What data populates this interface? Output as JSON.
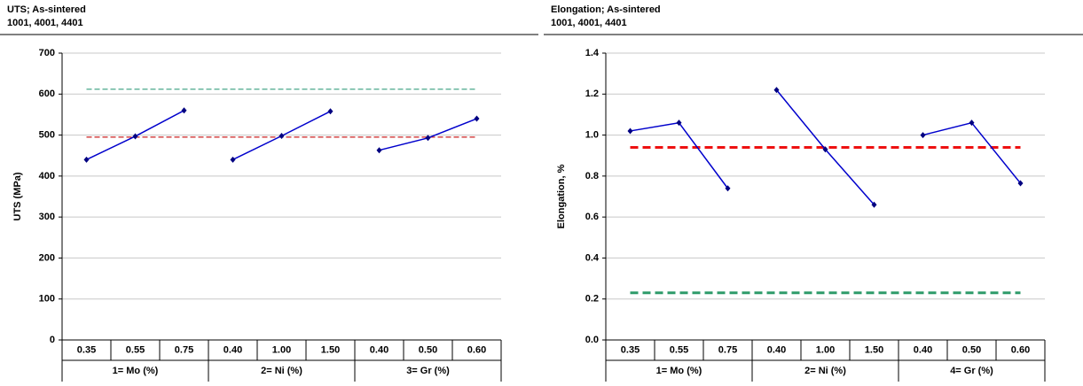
{
  "chart_data": [
    {
      "type": "line",
      "title": "UTS; As-sintered",
      "subtitle": "1001, 4001, 4401",
      "y_label": "UTS (MPa)",
      "categories": [
        "0.35",
        "0.55",
        "0.75",
        "0.40",
        "1.00",
        "1.50",
        "0.40",
        "0.50",
        "0.60"
      ],
      "groups": [
        "1= Mo (%)",
        "2= Ni (%)",
        "3= Gr (%)"
      ],
      "series": [
        {
          "color": "#0000cc",
          "values": [
            440,
            497,
            560,
            null,
            null,
            null,
            null,
            null,
            null
          ]
        },
        {
          "color": "#0000cc",
          "values": [
            null,
            null,
            null,
            440,
            498,
            558,
            null,
            null,
            null
          ]
        },
        {
          "color": "#0000cc",
          "values": [
            null,
            null,
            null,
            null,
            null,
            null,
            463,
            493,
            540
          ]
        }
      ],
      "reference_lines": [
        {
          "value": 612,
          "color": "#4aa88a"
        },
        {
          "value": 495,
          "color": "#cc2222"
        }
      ],
      "ylim": [
        0,
        700
      ],
      "yticks": [
        0,
        100,
        200,
        300,
        400,
        500,
        600,
        700
      ],
      "grid": true
    },
    {
      "type": "line",
      "title": "Elongation; As-sintered",
      "subtitle": "1001, 4001, 4401",
      "y_label": "Elongation, %",
      "categories": [
        "0.35",
        "0.55",
        "0.75",
        "0.40",
        "1.00",
        "1.50",
        "0.40",
        "0.50",
        "0.60"
      ],
      "groups": [
        "1= Mo (%)",
        "2= Ni (%)",
        "4= Gr (%)"
      ],
      "series": [
        {
          "color": "#0000cc",
          "values": [
            1.02,
            1.06,
            0.74,
            null,
            null,
            null,
            null,
            null,
            null
          ]
        },
        {
          "color": "#0000cc",
          "values": [
            null,
            null,
            null,
            1.22,
            0.93,
            0.66,
            null,
            null,
            null
          ]
        },
        {
          "color": "#0000cc",
          "values": [
            null,
            null,
            null,
            null,
            null,
            null,
            1.0,
            1.06,
            0.765
          ]
        }
      ],
      "reference_lines": [
        {
          "value": 0.94,
          "color": "#ee1111",
          "thick": true
        },
        {
          "value": 0.23,
          "color": "#2e9b6a",
          "thick": true
        }
      ],
      "ylim": [
        0,
        1.4
      ],
      "yticks": [
        {
          "value": 0,
          "label": "0.0"
        },
        0.2,
        0.4,
        0.6,
        0.8,
        {
          "value": 1,
          "label": "1.0"
        },
        1.2,
        1.4
      ],
      "grid": true
    }
  ]
}
